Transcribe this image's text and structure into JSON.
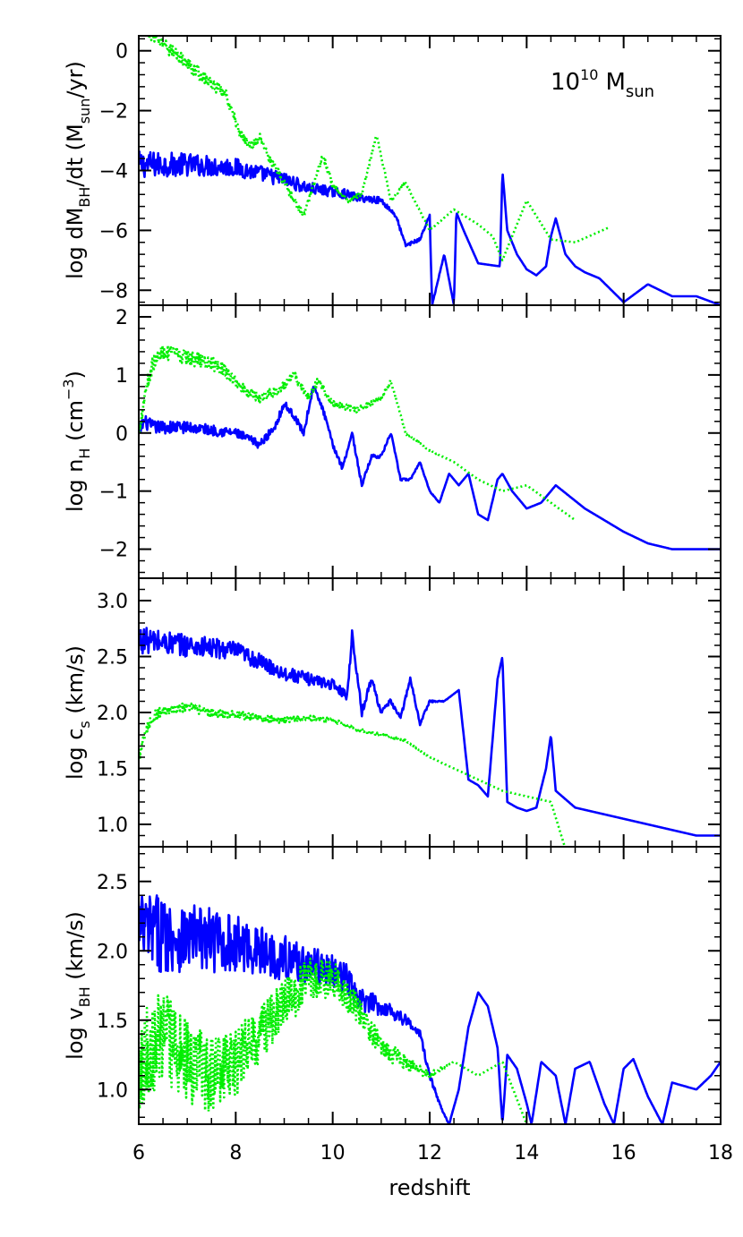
{
  "chart_data": {
    "type": "line",
    "layout": "stacked-panels",
    "shared_x": {
      "label": "redshift",
      "range": [
        6,
        18
      ],
      "ticks": [
        6,
        8,
        10,
        12,
        14,
        16,
        18
      ],
      "tick_labels": [
        "6",
        "8",
        "10",
        "12",
        "14",
        "16",
        "18"
      ]
    },
    "annotation": {
      "base": "10",
      "exponent": "10",
      "text": "M",
      "subscript": "sun"
    },
    "series_styles": [
      {
        "name": "blue-solid",
        "color": "#0000ff",
        "style": "solid"
      },
      {
        "name": "green-dotted",
        "color": "#00ee00",
        "style": "dotted"
      }
    ],
    "panels": [
      {
        "id": "mdot",
        "ylabel": {
          "prefix": "log dM",
          "sub": "BH",
          "suffix": "/dt (M",
          "sub2": "sun",
          "suffix2": "/yr)"
        },
        "ylim": [
          -8.5,
          0.5
        ],
        "yticks": [
          0,
          -2,
          -4,
          -6,
          -8
        ],
        "ytick_labels": [
          "0",
          "−2",
          "−4",
          "−6",
          "−8"
        ],
        "series": [
          {
            "name": "blue-solid",
            "noise": 0.45,
            "x": [
              6,
              7,
              8,
              8.5,
              9,
              9.5,
              10,
              10.3,
              10.5,
              11,
              11.3,
              11.5,
              11.8,
              12,
              12.05,
              12.3,
              12.5,
              12.55,
              12.7,
              13,
              13.45,
              13.5,
              13.6,
              13.8,
              14,
              14.2,
              14.4,
              14.5,
              14.6,
              14.8,
              15,
              15.2,
              15.5,
              16,
              16.5,
              17,
              17.5,
              18
            ],
            "y": [
              -3.8,
              -3.8,
              -3.9,
              -4.1,
              -4.3,
              -4.6,
              -4.7,
              -4.8,
              -4.9,
              -5.0,
              -5.5,
              -6.5,
              -6.3,
              -5.5,
              -8.5,
              -6.8,
              -8.5,
              -5.4,
              -6.0,
              -7.1,
              -7.2,
              -4.0,
              -6.0,
              -6.8,
              -7.3,
              -7.5,
              -7.2,
              -6.2,
              -5.6,
              -6.8,
              -7.2,
              -7.4,
              -7.6,
              -8.4,
              -7.8,
              -8.2,
              -8.2,
              -8.5
            ]
          },
          {
            "name": "green-dotted",
            "noise": 0.25,
            "x": [
              6,
              6.3,
              7.8,
              8.1,
              8.3,
              8.5,
              8.7,
              9.0,
              9.2,
              9.4,
              9.6,
              9.8,
              10.0,
              10.3,
              10.6,
              10.9,
              11.2,
              11.5,
              12,
              12.5,
              13,
              13.3,
              13.5,
              14,
              14.5,
              15,
              15.7
            ],
            "y": [
              1.0,
              0.5,
              -1.5,
              -2.8,
              -3.2,
              -2.9,
              -3.6,
              -4.4,
              -5.0,
              -5.5,
              -4.5,
              -3.5,
              -4.5,
              -5.0,
              -4.8,
              -2.8,
              -5.0,
              -4.4,
              -6.0,
              -5.3,
              -5.8,
              -6.2,
              -7.0,
              -5.0,
              -6.3,
              -6.4,
              -5.9
            ]
          }
        ]
      },
      {
        "id": "nH",
        "ylabel": {
          "prefix": "log n",
          "sub": "H",
          "suffix": " (cm",
          "sup": "−3",
          "suffix2": ")"
        },
        "ylim": [
          -2.5,
          2.2
        ],
        "yticks": [
          2,
          1,
          0,
          -1,
          -2
        ],
        "ytick_labels": [
          "2",
          "1",
          "0",
          "−1",
          "−2"
        ],
        "series": [
          {
            "name": "blue-solid",
            "noise": 0.12,
            "x": [
              6,
              6.1,
              6.3,
              7,
              8,
              8.5,
              8.8,
              9,
              9.2,
              9.4,
              9.6,
              9.8,
              10,
              10.2,
              10.4,
              10.6,
              10.8,
              11,
              11.2,
              11.4,
              11.6,
              11.8,
              12,
              12.2,
              12.4,
              12.6,
              12.8,
              13,
              13.2,
              13.4,
              13.5,
              13.7,
              14,
              14.3,
              14.6,
              14.9,
              15.2,
              15.6,
              16,
              16.5,
              17,
              17.5,
              18
            ],
            "y": [
              0.0,
              0.2,
              0.1,
              0.1,
              0.0,
              -0.2,
              0.1,
              0.5,
              0.3,
              0.0,
              0.8,
              0.4,
              -0.2,
              -0.6,
              0.0,
              -0.9,
              -0.4,
              -0.4,
              0.0,
              -0.8,
              -0.8,
              -0.5,
              -1.0,
              -1.2,
              -0.7,
              -0.9,
              -0.7,
              -1.4,
              -1.5,
              -0.8,
              -0.7,
              -1.0,
              -1.3,
              -1.2,
              -0.9,
              -1.1,
              -1.3,
              -1.5,
              -1.7,
              -1.9,
              -2.0,
              -2.0,
              -2.0
            ]
          },
          {
            "name": "green-dotted",
            "noise": 0.15,
            "x": [
              6,
              6.15,
              6.3,
              6.5,
              7,
              7.5,
              7.8,
              8.1,
              8.5,
              9.0,
              9.2,
              9.5,
              9.7,
              10.0,
              10.5,
              11.0,
              11.2,
              11.5,
              12,
              12.5,
              13,
              13.5,
              14,
              14.5,
              15.0
            ],
            "y": [
              0.0,
              0.8,
              1.2,
              1.4,
              1.3,
              1.2,
              1.05,
              0.8,
              0.6,
              0.8,
              1.0,
              0.6,
              0.9,
              0.5,
              0.4,
              0.6,
              0.9,
              0.0,
              -0.3,
              -0.5,
              -0.8,
              -1.0,
              -0.9,
              -1.2,
              -1.5
            ]
          }
        ]
      },
      {
        "id": "cs",
        "ylabel": {
          "prefix": "log c",
          "sub": "s",
          "suffix": " (km/s)"
        },
        "ylim": [
          0.8,
          3.2
        ],
        "yticks": [
          3.0,
          2.5,
          2.0,
          1.5,
          1.0
        ],
        "ytick_labels": [
          "3.0",
          "2.5",
          "2.0",
          "1.5",
          "1.0"
        ],
        "series": [
          {
            "name": "blue-solid",
            "noise": 0.12,
            "x": [
              6,
              7,
              8,
              8.5,
              9,
              9.5,
              10,
              10.3,
              10.4,
              10.6,
              10.8,
              11.0,
              11.2,
              11.4,
              11.6,
              11.8,
              12,
              12.3,
              12.6,
              12.8,
              13.0,
              13.2,
              13.4,
              13.5,
              13.6,
              13.8,
              14,
              14.2,
              14.4,
              14.5,
              14.6,
              15,
              15.5,
              16,
              16.5,
              17,
              17.5,
              18
            ],
            "y": [
              2.65,
              2.6,
              2.55,
              2.45,
              2.35,
              2.3,
              2.25,
              2.15,
              2.7,
              2.0,
              2.3,
              2.0,
              2.1,
              1.95,
              2.3,
              1.9,
              2.1,
              2.1,
              2.2,
              1.4,
              1.35,
              1.25,
              2.3,
              2.5,
              1.2,
              1.15,
              1.12,
              1.15,
              1.5,
              1.8,
              1.3,
              1.15,
              1.1,
              1.05,
              1.0,
              0.95,
              0.9,
              0.9
            ]
          },
          {
            "name": "green-dotted",
            "noise": 0.05,
            "x": [
              6,
              6.2,
              6.4,
              7,
              7.5,
              8,
              8.5,
              9,
              9.5,
              10,
              10.5,
              11,
              11.5,
              12,
              12.5,
              13,
              13.5,
              14,
              14.5,
              14.8
            ],
            "y": [
              1.6,
              1.9,
              2.0,
              2.05,
              2.0,
              1.98,
              1.95,
              1.93,
              1.95,
              1.93,
              1.85,
              1.8,
              1.75,
              1.6,
              1.5,
              1.4,
              1.3,
              1.25,
              1.2,
              0.78
            ]
          }
        ]
      },
      {
        "id": "vBH",
        "ylabel": {
          "prefix": "log v",
          "sub": "BH",
          "suffix": " (km/s)"
        },
        "ylim": [
          0.75,
          2.75
        ],
        "yticks": [
          2.5,
          2.0,
          1.5,
          1.0
        ],
        "ytick_labels": [
          "2.5",
          "2.0",
          "1.5",
          "1.0"
        ],
        "series": [
          {
            "name": "blue-solid",
            "noise": 0.3,
            "x": [
              6,
              7,
              8,
              8.5,
              9,
              9.5,
              10,
              10.3,
              10.5,
              11,
              11.3,
              11.5,
              11.8,
              12,
              12.2,
              12.4,
              12.6,
              12.8,
              13.0,
              13.2,
              13.4,
              13.5,
              13.6,
              13.8,
              14.0,
              14.1,
              14.3,
              14.6,
              14.8,
              15.0,
              15.3,
              15.6,
              15.8,
              16.0,
              16.2,
              16.5,
              16.8,
              17.0,
              17.5,
              17.8,
              18
            ],
            "y": [
              2.15,
              2.1,
              2.05,
              2.0,
              1.95,
              1.9,
              1.85,
              1.8,
              1.65,
              1.6,
              1.55,
              1.5,
              1.4,
              1.1,
              0.9,
              0.75,
              1.0,
              1.45,
              1.7,
              1.6,
              1.3,
              0.75,
              1.25,
              1.15,
              0.9,
              0.75,
              1.2,
              1.1,
              0.75,
              1.15,
              1.2,
              0.9,
              0.75,
              1.15,
              1.22,
              0.95,
              0.75,
              1.05,
              1.0,
              1.1,
              1.2
            ]
          },
          {
            "name": "green-dotted",
            "noise": 0.35,
            "x": [
              6,
              6.5,
              7,
              7.5,
              8,
              8.5,
              9,
              9.5,
              10,
              10.5,
              11,
              11.5,
              12,
              12.5,
              13,
              13.5,
              14
            ],
            "y": [
              1.2,
              1.4,
              1.2,
              1.1,
              1.2,
              1.4,
              1.6,
              1.8,
              1.8,
              1.6,
              1.3,
              1.2,
              1.1,
              1.2,
              1.1,
              1.2,
              0.75
            ]
          }
        ]
      }
    ]
  }
}
